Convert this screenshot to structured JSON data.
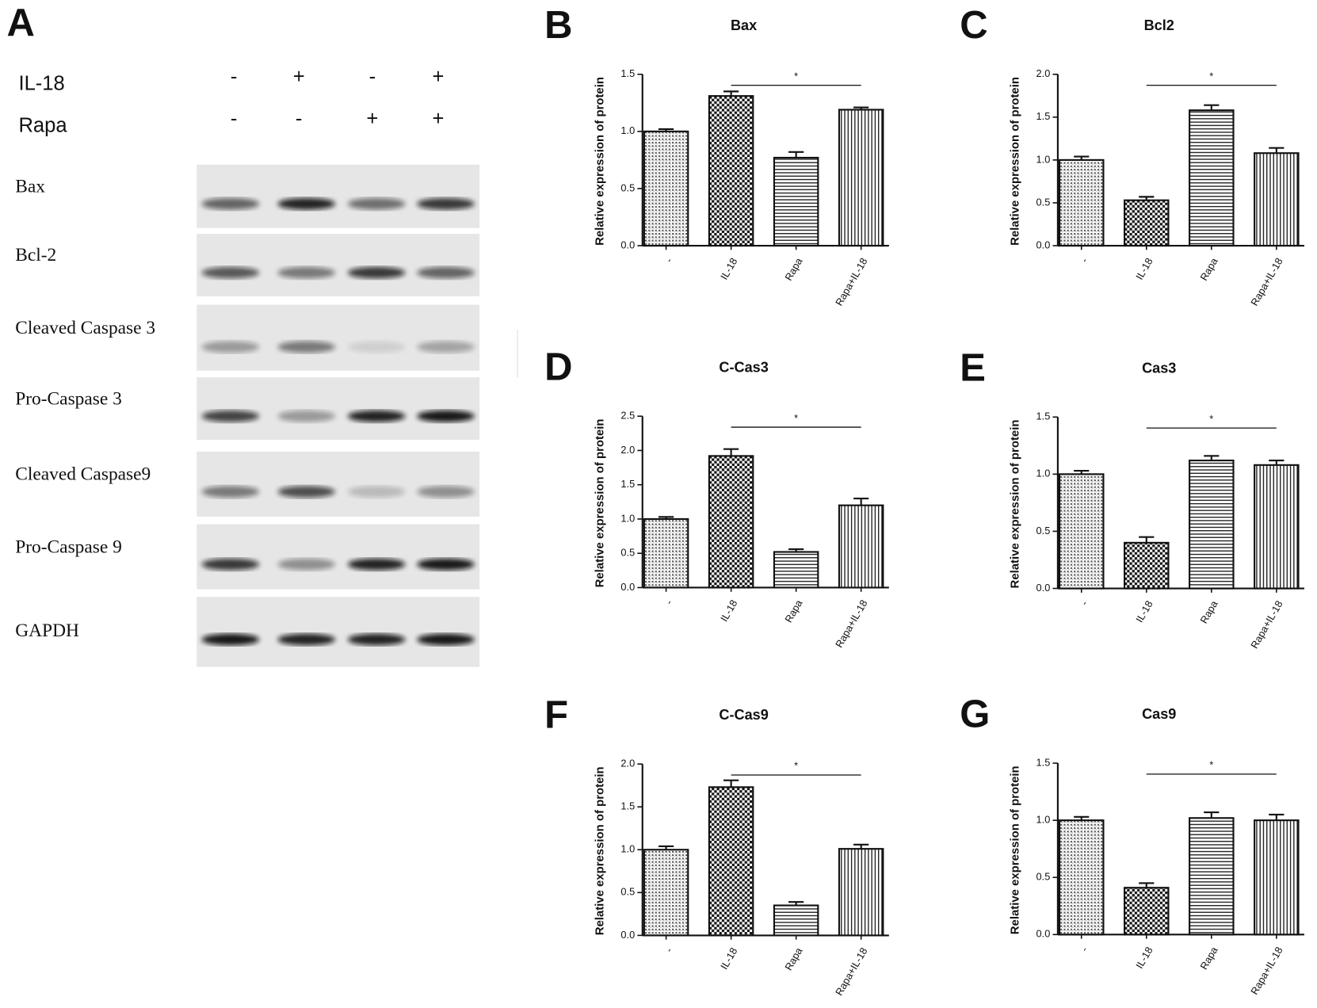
{
  "blot": {
    "label": "A",
    "conditions": [
      {
        "name": "IL-18",
        "signs": [
          "-",
          "+",
          "-",
          "+"
        ]
      },
      {
        "name": "Rapa",
        "signs": [
          "-",
          "-",
          "+",
          "+"
        ]
      }
    ],
    "rows": [
      "Bax",
      "Bcl-2",
      "Cleaved Caspase 3",
      "Pro-Caspase 3",
      "Cleaved Caspase9",
      "Pro-Caspase 9",
      "GAPDH"
    ]
  },
  "chart_data": [
    {
      "type": "bar",
      "label": "B",
      "title": "Bax",
      "y_label": "Relative expression of protein",
      "categories": [
        "-",
        "IL-18",
        "Rapa",
        "Rapa+IL-18"
      ],
      "values": [
        1.0,
        1.31,
        0.77,
        1.19
      ],
      "errors": [
        0.02,
        0.04,
        0.05,
        0.02
      ],
      "patterns": [
        "dots",
        "checker",
        "hlines",
        "vlines"
      ],
      "annotation": "*",
      "ylim": [
        0,
        1.5
      ],
      "yticks": [
        {
          "value": 0,
          "label": "0.0"
        },
        0.5,
        {
          "value": 1,
          "label": "1.0"
        },
        1.5
      ]
    },
    {
      "type": "bar",
      "label": "C",
      "title": "Bcl2",
      "y_label": "Relative expression of protein",
      "categories": [
        "-",
        "IL-18",
        "Rapa",
        "Rapa+IL-18"
      ],
      "values": [
        1.0,
        0.53,
        1.58,
        1.08
      ],
      "errors": [
        0.04,
        0.04,
        0.06,
        0.06
      ],
      "patterns": [
        "dots",
        "checker",
        "hlines",
        "vlines"
      ],
      "annotation": "*",
      "ylim": [
        0,
        2
      ],
      "yticks": [
        {
          "value": 0,
          "label": "0.0"
        },
        0.5,
        {
          "value": 1,
          "label": "1.0"
        },
        1.5,
        {
          "value": 2,
          "label": "2.0"
        }
      ]
    },
    {
      "type": "bar",
      "label": "D",
      "title": "C-Cas3",
      "y_label": "Relative expression of protein",
      "categories": [
        "-",
        "IL-18",
        "Rapa",
        "Rapa+IL-18"
      ],
      "values": [
        1.0,
        1.92,
        0.52,
        1.2
      ],
      "errors": [
        0.03,
        0.1,
        0.04,
        0.1
      ],
      "patterns": [
        "dots",
        "checker",
        "hlines",
        "vlines"
      ],
      "annotation": "*",
      "ylim": [
        0,
        2.5
      ],
      "yticks": [
        {
          "value": 0,
          "label": "0.0"
        },
        0.5,
        {
          "value": 1,
          "label": "1.0"
        },
        1.5,
        {
          "value": 2,
          "label": "2.0"
        },
        2.5
      ]
    },
    {
      "type": "bar",
      "label": "E",
      "title": "Cas3",
      "y_label": "Relative expression of protein",
      "categories": [
        "-",
        "IL-18",
        "Rapa",
        "Rapa+IL-18"
      ],
      "values": [
        1.0,
        0.4,
        1.12,
        1.08
      ],
      "errors": [
        0.03,
        0.05,
        0.04,
        0.04
      ],
      "patterns": [
        "dots",
        "checker",
        "hlines",
        "vlines"
      ],
      "annotation": "*",
      "ylim": [
        0,
        1.5
      ],
      "yticks": [
        {
          "value": 0,
          "label": "0.0"
        },
        0.5,
        {
          "value": 1,
          "label": "1.0"
        },
        1.5
      ]
    },
    {
      "type": "bar",
      "label": "F",
      "title": "C-Cas9",
      "y_label": "Relative expression of protein",
      "categories": [
        "-",
        "IL-18",
        "Rapa",
        "Rapa+IL-18"
      ],
      "values": [
        1.0,
        1.73,
        0.35,
        1.01
      ],
      "errors": [
        0.04,
        0.08,
        0.04,
        0.05
      ],
      "patterns": [
        "dots",
        "checker",
        "hlines",
        "vlines"
      ],
      "annotation": "*",
      "ylim": [
        0,
        2
      ],
      "yticks": [
        {
          "value": 0,
          "label": "0.0"
        },
        0.5,
        {
          "value": 1,
          "label": "1.0"
        },
        1.5,
        {
          "value": 2,
          "label": "2.0"
        }
      ]
    },
    {
      "type": "bar",
      "label": "G",
      "title": "Cas9",
      "y_label": "Relative expression of protein",
      "categories": [
        "-",
        "IL-18",
        "Rapa",
        "Rapa+IL-18"
      ],
      "values": [
        1.0,
        0.41,
        1.02,
        1.0
      ],
      "errors": [
        0.03,
        0.04,
        0.05,
        0.05
      ],
      "patterns": [
        "dots",
        "checker",
        "hlines",
        "vlines"
      ],
      "annotation": "*",
      "ylim": [
        0,
        1.5
      ],
      "yticks": [
        {
          "value": 0,
          "label": "0.0"
        },
        0.5,
        {
          "value": 1,
          "label": "1.0"
        },
        1.5
      ]
    }
  ]
}
